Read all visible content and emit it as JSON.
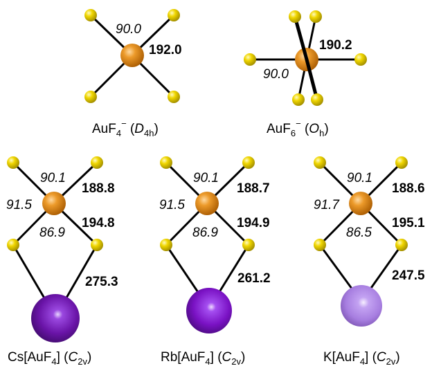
{
  "colors": {
    "gold": "#e38a12",
    "fluorine": "#f2d800",
    "cs": "#6a14a8",
    "rb": "#7a12c4",
    "k": "#a77ee0"
  },
  "molecules": [
    {
      "bond_length": "192.0",
      "angle": "90.0",
      "caption": {
        "formula": "AuF",
        "sub": "4",
        "sup": "−",
        "open": " (",
        "sym": "D",
        "symsub": "4h",
        "close": ")"
      }
    },
    {
      "bond_length": "190.2",
      "angle": "90.0",
      "caption": {
        "formula": "AuF",
        "sub": "6",
        "sup": "−",
        "open": " (",
        "sym": "O",
        "symsub": "h",
        "close": ")"
      }
    },
    {
      "angle_top": "90.1",
      "bond_top": "188.8",
      "angle_left": "91.5",
      "bond_mid": "194.8",
      "angle_bottom": "86.9",
      "bond_metal": "275.3",
      "caption": {
        "pre": "Cs[AuF",
        "sub": "4",
        "post": "] (",
        "sym": "C",
        "symsub": "2v",
        "close": ")"
      }
    },
    {
      "angle_top": "90.1",
      "bond_top": "188.7",
      "angle_left": "91.5",
      "bond_mid": "194.9",
      "angle_bottom": "86.9",
      "bond_metal": "261.2",
      "caption": {
        "pre": "Rb[AuF",
        "sub": "4",
        "post": "] (",
        "sym": "C",
        "symsub": "2v",
        "close": ")"
      }
    },
    {
      "angle_top": "90.1",
      "bond_top": "188.6",
      "angle_left": "91.7",
      "bond_mid": "195.1",
      "angle_bottom": "86.5",
      "bond_metal": "247.5",
      "caption": {
        "pre": "K[AuF",
        "sub": "4",
        "post": "] (",
        "sym": "C",
        "symsub": "2v",
        "close": ")"
      }
    }
  ]
}
